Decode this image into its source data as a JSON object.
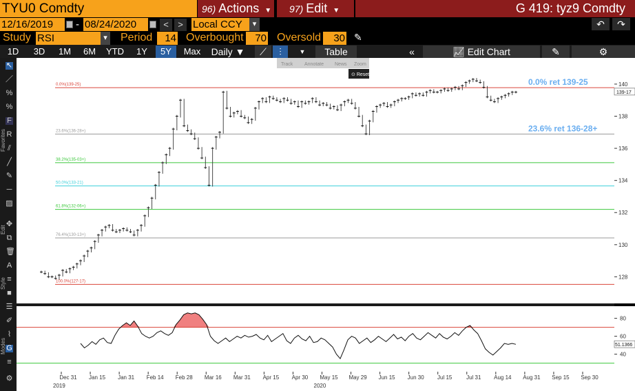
{
  "header": {
    "ticker": "TYU0 Comdty",
    "actions_num": "96)",
    "actions_label": "Actions",
    "edit_num": "97)",
    "edit_label": "Edit",
    "title": "G 419: tyz9 Comdty"
  },
  "dates": {
    "start": "12/16/2019",
    "sep": "-",
    "end": "08/24/2020",
    "currency": "Local CCY"
  },
  "study": {
    "study_label": "Study",
    "study_value": "RSI",
    "period_label": "Period",
    "period_value": "14",
    "overbought_label": "Overbought",
    "overbought_value": "70",
    "oversold_label": "Oversold",
    "oversold_value": "30"
  },
  "ranges": [
    "1D",
    "3D",
    "1M",
    "6M",
    "YTD",
    "1Y",
    "5Y",
    "Max"
  ],
  "selected_range": "5Y",
  "freq": "Daily",
  "table_label": "Table",
  "edit_chart_label": "Edit Chart",
  "zoom_menu": {
    "track": "Track",
    "annotate": "Annotate",
    "news": "News",
    "zoom": "Zoom",
    "reset": "Reset"
  },
  "left_tabs": {
    "favorites": "Favorites",
    "edit": "Edit",
    "style": "Style",
    "modes": "Modes"
  },
  "fib": [
    {
      "pct": "0.0%",
      "price": "139-25",
      "value": 139.78,
      "color": "#d9443a",
      "text": "0.0%(139-25)"
    },
    {
      "pct": "23.6%",
      "price": "136-28+",
      "value": 136.89,
      "color": "#9a9a9a",
      "text": "23.6%(136-28+)"
    },
    {
      "pct": "38.2%",
      "price": "135-03+",
      "value": 135.11,
      "color": "#3cc83c",
      "text": "38.2%(135-03+)"
    },
    {
      "pct": "50.0%",
      "price": "133-21",
      "value": 133.66,
      "color": "#3ccfd9",
      "text": "50.0%(133-21)"
    },
    {
      "pct": "61.8%",
      "price": "132-06+",
      "value": 132.2,
      "color": "#3cc83c",
      "text": "61.8%(132-06+)"
    },
    {
      "pct": "76.4%",
      "price": "130-13+",
      "value": 130.42,
      "color": "#9a9a9a",
      "text": "76.4%(130-13+)"
    },
    {
      "pct": "100.0%",
      "price": "127-17",
      "value": 127.53,
      "color": "#d9443a",
      "text": "100.0%(127-17)"
    }
  ],
  "fib_labels_right": [
    {
      "text": "0.0% ret 139-25",
      "color": "#6aaef0"
    },
    {
      "text": "23.6% ret 136-28+",
      "color": "#6aaef0"
    }
  ],
  "chart_data": {
    "type": "line",
    "y_ticks": [
      128,
      130,
      132,
      134,
      136,
      138,
      140
    ],
    "ylim": [
      126.6,
      141.2
    ],
    "last_price": "139-17",
    "last_price_value": 139.53,
    "x_ticks": [
      "Dec 31",
      "Jan 15",
      "Jan 31",
      "Feb 14",
      "Feb 28",
      "Mar 16",
      "Mar 31",
      "Apr 15",
      "Apr 30",
      "May 15",
      "May 29",
      "Jun 15",
      "Jun 30",
      "Jul 15",
      "Jul 31",
      "Aug 14",
      "Aug 31",
      "Sep 15",
      "Sep 30"
    ],
    "years": [
      {
        "label": "2019",
        "at": "Dec 31"
      },
      {
        "label": "2020",
        "at": "May 15"
      }
    ],
    "price_series": [
      128.3,
      128.2,
      128.0,
      128.0,
      127.9,
      128.1,
      128.4,
      128.3,
      128.5,
      128.6,
      128.8,
      129.0,
      129.3,
      129.6,
      129.8,
      130.2,
      130.6,
      130.9,
      131.1,
      131.2,
      130.9,
      130.8,
      130.9,
      131.0,
      130.9,
      130.8,
      130.6,
      130.9,
      131.2,
      131.8,
      132.3,
      132.9,
      133.7,
      134.5,
      135.1,
      135.6,
      136.0,
      137.2,
      138.0,
      139.0,
      137.4,
      137.1,
      136.9,
      136.6,
      136.0,
      135.4,
      134.8,
      133.7,
      136.0,
      136.7,
      137.0,
      139.5,
      138.5,
      138.0,
      138.2,
      138.3,
      138.0,
      137.9,
      137.6,
      137.8,
      138.5,
      138.9,
      139.1,
      138.9,
      139.2,
      139.1,
      139.0,
      138.9,
      139.1,
      139.0,
      138.8,
      138.9,
      138.6,
      138.9,
      138.8,
      138.9,
      139.1,
      138.9,
      138.7,
      138.8,
      138.7,
      138.5,
      138.6,
      138.4,
      138.7,
      138.9,
      139.0,
      138.8,
      138.5,
      138.0,
      137.4,
      136.9,
      137.7,
      138.3,
      138.6,
      138.7,
      138.8,
      138.6,
      138.7,
      138.9,
      139.0,
      139.1,
      139.1,
      139.2,
      139.4,
      139.3,
      139.4,
      139.3,
      139.5,
      139.6,
      139.5,
      139.5,
      139.6,
      139.7,
      139.6,
      139.7,
      139.8,
      139.7,
      139.9,
      140.1,
      140.2,
      140.3,
      140.2,
      140.1,
      139.8,
      139.2,
      139.0,
      138.9,
      139.1,
      139.2,
      139.3,
      139.4,
      139.5,
      139.5
    ],
    "rsi": {
      "y_ticks": [
        40,
        60,
        80
      ],
      "ylim": [
        22,
        92
      ],
      "overbought": 70,
      "oversold": 30,
      "last_value": "51.1366",
      "last_value_num": 51.14,
      "series": [
        52,
        47,
        50,
        54,
        51,
        56,
        58,
        53,
        52,
        61,
        68,
        72,
        75,
        72,
        77,
        71,
        63,
        60,
        58,
        60,
        64,
        66,
        63,
        61,
        64,
        73,
        78,
        84,
        86,
        85,
        86,
        84,
        79,
        73,
        60,
        55,
        52,
        55,
        58,
        54,
        57,
        60,
        58,
        61,
        59,
        60,
        62,
        58,
        56,
        61,
        54,
        57,
        60,
        63,
        55,
        52,
        58,
        61,
        57,
        55,
        60,
        53,
        54,
        58,
        56,
        52,
        48,
        40,
        35,
        45,
        56,
        60,
        58,
        52,
        55,
        58,
        53,
        56,
        60,
        57,
        54,
        58,
        62,
        57,
        59,
        55,
        60,
        63,
        58,
        56,
        60,
        64,
        61,
        58,
        63,
        59,
        57,
        60,
        64,
        61,
        66,
        70,
        72,
        67,
        63,
        55,
        46,
        42,
        39,
        43,
        47,
        52,
        51,
        52,
        51
      ]
    }
  }
}
